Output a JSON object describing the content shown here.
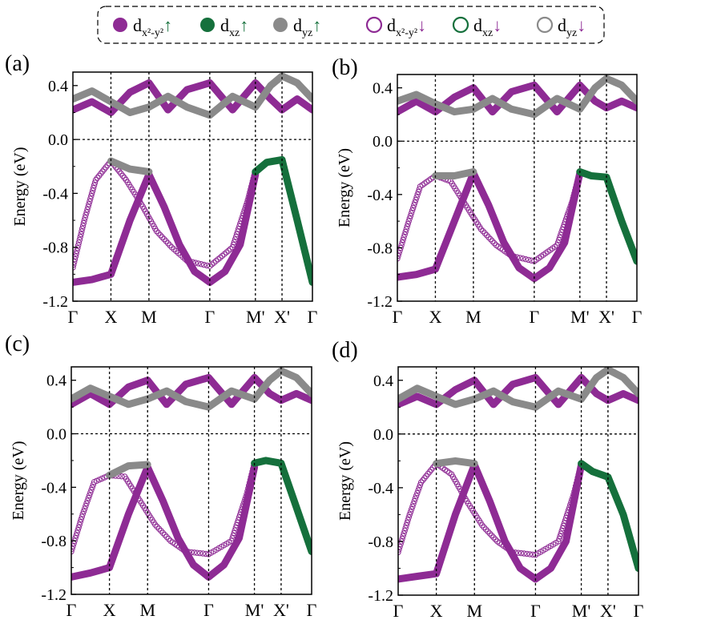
{
  "legend": {
    "entries": [
      {
        "base": "d",
        "sub": "x²-y²",
        "spin": "↑",
        "color": "#8e2b94",
        "filled": true,
        "arrow_color": "#15703c"
      },
      {
        "base": "d",
        "sub": "xz",
        "spin": "↑",
        "color": "#15703c",
        "filled": true,
        "arrow_color": "#15703c"
      },
      {
        "base": "d",
        "sub": "yz",
        "spin": "↑",
        "color": "#8a8a8a",
        "filled": true,
        "arrow_color": "#15703c"
      },
      {
        "base": "d",
        "sub": "x²-y²",
        "spin": "↓",
        "color": "#8e2b94",
        "filled": false,
        "arrow_color": "#8e2b94"
      },
      {
        "base": "d",
        "sub": "xz",
        "spin": "↓",
        "color": "#15703c",
        "filled": false,
        "arrow_color": "#8e2b94"
      },
      {
        "base": "d",
        "sub": "yz",
        "spin": "↓",
        "color": "#8a8a8a",
        "filled": false,
        "arrow_color": "#8e2b94"
      }
    ]
  },
  "colors": {
    "dx2y2": "#8e2b94",
    "dxz": "#15703c",
    "dyz": "#8a8a8a"
  },
  "chart_data": [
    {
      "type": "line",
      "panel": "(a)",
      "ylabel": "Energy (eV)",
      "ylim": [
        -1.2,
        0.5
      ],
      "yticks": [
        "0.4",
        "0.0",
        "-0.4",
        "-0.8",
        "-1.2"
      ],
      "ytick_values": [
        0.4,
        0.0,
        -0.4,
        -0.8,
        -1.2
      ],
      "kpoints": [
        "Γ",
        "X",
        "M",
        "Γ",
        "M'",
        "X'",
        "Γ"
      ],
      "kpos": [
        0,
        1,
        2,
        3.6,
        4.8,
        5.5,
        6.3
      ],
      "series": [
        {
          "orbital": "dx2y2",
          "spin": "up",
          "x": [
            2,
            2.4,
            2.8,
            3.2,
            3.6,
            4.0,
            4.4,
            4.8
          ],
          "y": [
            -0.26,
            -0.5,
            -0.78,
            -0.98,
            -1.06,
            -0.98,
            -0.78,
            -0.26
          ]
        },
        {
          "orbital": "dx2y2",
          "spin": "up",
          "x": [
            0,
            0.5,
            1,
            1.5,
            2
          ],
          "y": [
            -1.06,
            -1.04,
            -1.0,
            -0.6,
            -0.26
          ]
        },
        {
          "orbital": "dx2y2",
          "spin": "down",
          "x": [
            1,
            1.4,
            1.8,
            2.2,
            2.6,
            3.0,
            3.6,
            4.2,
            4.6,
            4.8
          ],
          "y": [
            -0.16,
            -0.3,
            -0.48,
            -0.68,
            -0.8,
            -0.9,
            -0.94,
            -0.8,
            -0.45,
            -0.23
          ]
        },
        {
          "orbital": "dx2y2",
          "spin": "down",
          "x": [
            0,
            0.3,
            0.6,
            1
          ],
          "y": [
            -0.95,
            -0.6,
            -0.3,
            -0.16
          ]
        },
        {
          "orbital": "dyz",
          "spin": "up",
          "x": [
            1,
            1.5,
            2
          ],
          "y": [
            -0.16,
            -0.22,
            -0.24
          ]
        },
        {
          "orbital": "dxz",
          "spin": "up",
          "x": [
            4.8,
            5.1,
            5.5,
            5.9,
            6.3
          ],
          "y": [
            -0.24,
            -0.17,
            -0.15,
            -0.6,
            -1.06
          ]
        },
        {
          "orbital": "dx2y2",
          "spin": "up",
          "x": [
            0,
            0.5,
            1,
            1.5,
            2,
            2.5,
            3,
            3.6,
            4.2,
            4.8,
            5.2,
            5.5,
            5.9,
            6.3
          ],
          "y": [
            0.22,
            0.28,
            0.2,
            0.35,
            0.42,
            0.22,
            0.37,
            0.42,
            0.22,
            0.42,
            0.3,
            0.22,
            0.3,
            0.22
          ]
        },
        {
          "orbital": "dyz",
          "spin": "up",
          "x": [
            0,
            0.5,
            1,
            1.5,
            2,
            2.5,
            3,
            3.6,
            4.2,
            4.8,
            5.2,
            5.5,
            5.9,
            6.3
          ],
          "y": [
            0.3,
            0.36,
            0.28,
            0.2,
            0.24,
            0.32,
            0.24,
            0.18,
            0.32,
            0.24,
            0.4,
            0.47,
            0.42,
            0.3
          ]
        }
      ]
    },
    {
      "type": "line",
      "panel": "(b)",
      "ylabel": "Energy (eV)",
      "ylim": [
        -1.2,
        0.5
      ],
      "yticks": [
        "0.4",
        "0.0",
        "-0.4",
        "-0.8",
        "-1.2"
      ],
      "ytick_values": [
        0.4,
        0.0,
        -0.4,
        -0.8,
        -1.2
      ],
      "kpoints": [
        "Γ",
        "X",
        "M",
        "Γ",
        "M'",
        "X'",
        "Γ"
      ],
      "kpos": [
        0,
        1,
        2,
        3.6,
        4.8,
        5.5,
        6.3
      ],
      "series": [
        {
          "orbital": "dx2y2",
          "spin": "up",
          "x": [
            2,
            2.4,
            2.8,
            3.2,
            3.6,
            4.0,
            4.4,
            4.8
          ],
          "y": [
            -0.24,
            -0.48,
            -0.76,
            -0.95,
            -1.03,
            -0.95,
            -0.76,
            -0.24
          ]
        },
        {
          "orbital": "dx2y2",
          "spin": "up",
          "x": [
            0,
            0.5,
            1,
            1.5,
            2
          ],
          "y": [
            -1.02,
            -1.0,
            -0.96,
            -0.6,
            -0.24
          ]
        },
        {
          "orbital": "dx2y2",
          "spin": "down",
          "x": [
            1,
            1.4,
            1.8,
            2.2,
            2.6,
            3.0,
            3.6,
            4.2,
            4.6,
            4.8
          ],
          "y": [
            -0.26,
            -0.3,
            -0.48,
            -0.66,
            -0.78,
            -0.86,
            -0.9,
            -0.78,
            -0.45,
            -0.23
          ]
        },
        {
          "orbital": "dx2y2",
          "spin": "down",
          "x": [
            0,
            0.3,
            0.6,
            1
          ],
          "y": [
            -0.88,
            -0.6,
            -0.34,
            -0.26
          ]
        },
        {
          "orbital": "dyz",
          "spin": "up",
          "x": [
            1,
            1.5,
            2
          ],
          "y": [
            -0.26,
            -0.26,
            -0.23
          ]
        },
        {
          "orbital": "dxz",
          "spin": "up",
          "x": [
            4.8,
            5.1,
            5.5,
            5.9,
            6.3
          ],
          "y": [
            -0.23,
            -0.26,
            -0.27,
            -0.6,
            -0.9
          ]
        },
        {
          "orbital": "dx2y2",
          "spin": "up",
          "x": [
            0,
            0.5,
            1,
            1.5,
            2,
            2.5,
            3,
            3.6,
            4.2,
            4.8,
            5.2,
            5.5,
            5.9,
            6.3
          ],
          "y": [
            0.22,
            0.3,
            0.22,
            0.33,
            0.4,
            0.22,
            0.37,
            0.42,
            0.22,
            0.42,
            0.3,
            0.25,
            0.3,
            0.25
          ]
        },
        {
          "orbital": "dyz",
          "spin": "up",
          "x": [
            0,
            0.5,
            1,
            1.5,
            2,
            2.5,
            3,
            3.6,
            4.2,
            4.8,
            5.2,
            5.5,
            5.9,
            6.3
          ],
          "y": [
            0.3,
            0.35,
            0.28,
            0.22,
            0.24,
            0.32,
            0.24,
            0.2,
            0.32,
            0.24,
            0.4,
            0.47,
            0.42,
            0.3
          ]
        }
      ]
    },
    {
      "type": "line",
      "panel": "(c)",
      "ylabel": "Energy (eV)",
      "ylim": [
        -1.2,
        0.5
      ],
      "yticks": [
        "0.4",
        "0.0",
        "-0.4",
        "-0.8",
        "-1.2"
      ],
      "ytick_values": [
        0.4,
        0.0,
        -0.4,
        -0.8,
        -1.2
      ],
      "kpoints": [
        "Γ",
        "X",
        "M",
        "Γ",
        "M'",
        "X'",
        "Γ"
      ],
      "kpos": [
        0,
        1,
        2,
        3.6,
        4.8,
        5.5,
        6.3
      ],
      "series": [
        {
          "orbital": "dx2y2",
          "spin": "up",
          "x": [
            2,
            2.4,
            2.8,
            3.2,
            3.6,
            4.0,
            4.4,
            4.8
          ],
          "y": [
            -0.25,
            -0.5,
            -0.78,
            -0.98,
            -1.07,
            -0.98,
            -0.78,
            -0.25
          ]
        },
        {
          "orbital": "dx2y2",
          "spin": "up",
          "x": [
            0,
            0.5,
            1,
            1.5,
            2
          ],
          "y": [
            -1.07,
            -1.04,
            -1.0,
            -0.6,
            -0.25
          ]
        },
        {
          "orbital": "dx2y2",
          "spin": "down",
          "x": [
            1,
            1.4,
            1.8,
            2.2,
            2.6,
            3.0,
            3.6,
            4.2,
            4.6,
            4.8
          ],
          "y": [
            -0.31,
            -0.32,
            -0.5,
            -0.68,
            -0.8,
            -0.88,
            -0.9,
            -0.8,
            -0.45,
            -0.22
          ]
        },
        {
          "orbital": "dx2y2",
          "spin": "down",
          "x": [
            0,
            0.3,
            0.6,
            1
          ],
          "y": [
            -0.88,
            -0.6,
            -0.36,
            -0.31
          ]
        },
        {
          "orbital": "dyz",
          "spin": "up",
          "x": [
            1,
            1.5,
            2
          ],
          "y": [
            -0.31,
            -0.24,
            -0.23
          ]
        },
        {
          "orbital": "dxz",
          "spin": "up",
          "x": [
            4.8,
            5.1,
            5.5,
            5.9,
            6.3
          ],
          "y": [
            -0.22,
            -0.2,
            -0.22,
            -0.55,
            -0.88
          ]
        },
        {
          "orbital": "dx2y2",
          "spin": "up",
          "x": [
            0,
            0.5,
            1,
            1.5,
            2,
            2.5,
            3,
            3.6,
            4.2,
            4.8,
            5.2,
            5.5,
            5.9,
            6.3
          ],
          "y": [
            0.22,
            0.3,
            0.22,
            0.35,
            0.4,
            0.22,
            0.37,
            0.42,
            0.22,
            0.42,
            0.3,
            0.25,
            0.3,
            0.25
          ]
        },
        {
          "orbital": "dyz",
          "spin": "up",
          "x": [
            0,
            0.5,
            1,
            1.5,
            2,
            2.5,
            3,
            3.6,
            4.2,
            4.8,
            5.2,
            5.5,
            5.9,
            6.3
          ],
          "y": [
            0.26,
            0.34,
            0.28,
            0.22,
            0.26,
            0.32,
            0.24,
            0.2,
            0.32,
            0.26,
            0.4,
            0.47,
            0.42,
            0.3
          ]
        }
      ]
    },
    {
      "type": "line",
      "panel": "(d)",
      "ylabel": "Energy (eV)",
      "ylim": [
        -1.2,
        0.5
      ],
      "yticks": [
        "0.4",
        "0.0",
        "-0.4",
        "-0.8",
        "-1.2"
      ],
      "ytick_values": [
        0.4,
        0.0,
        -0.4,
        -0.8,
        -1.2
      ],
      "kpoints": [
        "Γ",
        "X",
        "M",
        "Γ",
        "M'",
        "X'",
        "Γ"
      ],
      "kpos": [
        0,
        1,
        2,
        3.6,
        4.8,
        5.5,
        6.3
      ],
      "series": [
        {
          "orbital": "dx2y2",
          "spin": "up",
          "x": [
            2,
            2.4,
            2.8,
            3.2,
            3.6,
            4.0,
            4.4,
            4.8
          ],
          "y": [
            -0.23,
            -0.5,
            -0.8,
            -1.0,
            -1.08,
            -1.0,
            -0.8,
            -0.23
          ]
        },
        {
          "orbital": "dx2y2",
          "spin": "up",
          "x": [
            0,
            0.5,
            1,
            1.5,
            2
          ],
          "y": [
            -1.08,
            -1.06,
            -1.04,
            -0.6,
            -0.23
          ]
        },
        {
          "orbital": "dx2y2",
          "spin": "down",
          "x": [
            1,
            1.4,
            1.8,
            2.2,
            2.6,
            3.0,
            3.6,
            4.2,
            4.6,
            4.8
          ],
          "y": [
            -0.22,
            -0.3,
            -0.5,
            -0.68,
            -0.8,
            -0.88,
            -0.9,
            -0.8,
            -0.45,
            -0.22
          ]
        },
        {
          "orbital": "dx2y2",
          "spin": "down",
          "x": [
            0,
            0.3,
            0.6,
            1
          ],
          "y": [
            -0.88,
            -0.6,
            -0.36,
            -0.22
          ]
        },
        {
          "orbital": "dyz",
          "spin": "up",
          "x": [
            1,
            1.5,
            2
          ],
          "y": [
            -0.22,
            -0.2,
            -0.22
          ]
        },
        {
          "orbital": "dxz",
          "spin": "up",
          "x": [
            4.8,
            5.1,
            5.5,
            5.9,
            6.3
          ],
          "y": [
            -0.22,
            -0.28,
            -0.32,
            -0.6,
            -1.0
          ]
        },
        {
          "orbital": "dx2y2",
          "spin": "up",
          "x": [
            0,
            0.5,
            1,
            1.5,
            2,
            2.5,
            3,
            3.6,
            4.2,
            4.8,
            5.2,
            5.5,
            5.9,
            6.3
          ],
          "y": [
            0.22,
            0.28,
            0.22,
            0.33,
            0.4,
            0.22,
            0.37,
            0.42,
            0.22,
            0.42,
            0.3,
            0.25,
            0.3,
            0.25
          ]
        },
        {
          "orbital": "dyz",
          "spin": "up",
          "x": [
            0,
            0.5,
            1,
            1.5,
            2,
            2.5,
            3,
            3.6,
            4.2,
            4.8,
            5.2,
            5.5,
            5.9,
            6.3
          ],
          "y": [
            0.26,
            0.34,
            0.28,
            0.22,
            0.26,
            0.32,
            0.24,
            0.2,
            0.32,
            0.26,
            0.42,
            0.48,
            0.42,
            0.3
          ]
        }
      ]
    }
  ]
}
